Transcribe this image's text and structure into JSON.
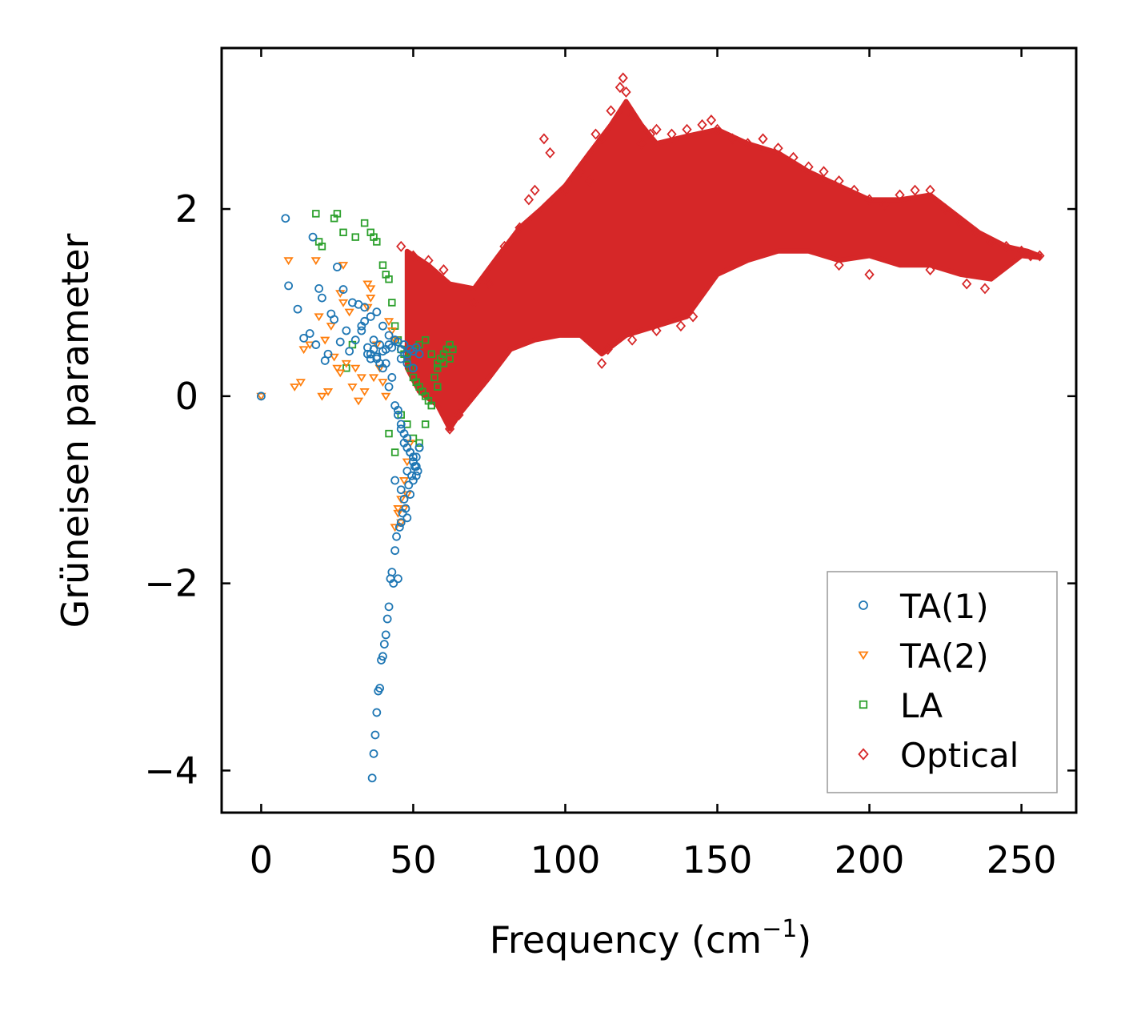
{
  "chart_data": {
    "type": "scatter",
    "title": "",
    "xlabel": "Frequency (cm",
    "xlabel_sup": "−1",
    "xlabel_close": ")",
    "ylabel": "Grüneisen parameter",
    "xlim": [
      -13,
      268
    ],
    "ylim": [
      -4.45,
      3.72
    ],
    "xticks": [
      0,
      50,
      100,
      150,
      200,
      250
    ],
    "yticks": [
      -4,
      -2,
      0,
      2
    ],
    "xtick_labels": [
      "0",
      "50",
      "100",
      "150",
      "200",
      "250"
    ],
    "ytick_labels": [
      "−4",
      "−2",
      "0",
      "2"
    ],
    "legend_position": "lower-right",
    "series": [
      {
        "name": "TA(1)",
        "marker": "circle",
        "color": "#1f77b4",
        "x": [
          0,
          8,
          9,
          12,
          14,
          16,
          17,
          18,
          19,
          20,
          21,
          22,
          23,
          24,
          25,
          26,
          27,
          28,
          29,
          30,
          31,
          32,
          33,
          34,
          35,
          36,
          37,
          38,
          39,
          40,
          41,
          42,
          43,
          44,
          45,
          46,
          47,
          48,
          49,
          50,
          51,
          36.5,
          37,
          37.5,
          38,
          38.5,
          39,
          39.5,
          40,
          40.5,
          41,
          41.5,
          42,
          42.5,
          43,
          43.5,
          44,
          44.5,
          45,
          45.5,
          46,
          46.5,
          47,
          47.5,
          48,
          48.5,
          49,
          49.5,
          50,
          50.5,
          51,
          51.5,
          35,
          36,
          37,
          38,
          39,
          40,
          41,
          42,
          43,
          44,
          45,
          46,
          47,
          48,
          49,
          50,
          51,
          52,
          33,
          34,
          36,
          38,
          40,
          42,
          44,
          46,
          48,
          50,
          45,
          46,
          47,
          48,
          49,
          50,
          51,
          52,
          44,
          46,
          48,
          50,
          52
        ],
        "y": [
          0,
          1.9,
          1.18,
          0.93,
          0.62,
          0.67,
          1.7,
          0.55,
          1.15,
          1.05,
          0.38,
          0.45,
          0.88,
          0.82,
          1.38,
          0.58,
          1.14,
          0.7,
          0.48,
          1.0,
          0.6,
          0.98,
          0.75,
          0.95,
          0.52,
          0.45,
          0.6,
          0.4,
          0.55,
          0.3,
          0.35,
          0.1,
          0.2,
          -0.1,
          -0.15,
          -0.3,
          -0.4,
          -0.55,
          -0.6,
          -0.7,
          -0.85,
          -4.08,
          -3.82,
          -3.62,
          -3.38,
          -3.15,
          -3.12,
          -2.82,
          -2.78,
          -2.65,
          -2.55,
          -2.38,
          -2.25,
          -1.95,
          -1.88,
          -2.0,
          -1.65,
          -1.5,
          -1.95,
          -1.4,
          -1.35,
          -1.25,
          -1.1,
          -1.2,
          -1.3,
          -0.95,
          -1.05,
          -0.85,
          -0.9,
          -0.75,
          -0.65,
          -0.8,
          0.45,
          0.4,
          0.5,
          0.42,
          0.35,
          0.48,
          0.5,
          0.55,
          0.52,
          0.6,
          0.58,
          0.5,
          0.55,
          0.45,
          0.5,
          0.48,
          0.52,
          0.45,
          0.7,
          0.8,
          0.85,
          0.9,
          0.75,
          0.65,
          0.6,
          0.4,
          0.35,
          0.3,
          -0.2,
          -0.35,
          -0.5,
          -0.45,
          -0.6,
          -0.7,
          -0.75,
          -0.55,
          -0.9,
          -1.0,
          -0.8,
          -0.65,
          -0.55
        ]
      },
      {
        "name": "TA(2)",
        "marker": "triangle-down",
        "color": "#ff7f0e",
        "x": [
          0,
          9,
          11,
          13,
          14,
          16,
          18,
          19,
          20,
          21,
          22,
          23,
          24,
          25,
          26,
          27,
          28,
          29,
          30,
          31,
          32,
          33,
          34,
          35,
          36,
          37,
          38,
          39,
          40,
          41,
          42,
          43,
          44,
          45,
          46,
          47,
          48,
          26,
          27,
          35,
          36,
          44,
          45,
          46,
          47,
          48,
          49
        ],
        "y": [
          0,
          1.45,
          0.1,
          0.15,
          0.5,
          0.55,
          1.45,
          0.85,
          0.0,
          0.6,
          0.05,
          0.75,
          0.42,
          0.3,
          0.25,
          1.4,
          0.35,
          0.9,
          0.1,
          0.3,
          -0.05,
          0.2,
          0.05,
          1.2,
          1.15,
          0.2,
          0.55,
          0.3,
          0.15,
          0.0,
          0.8,
          0.7,
          0.6,
          -1.2,
          -1.35,
          -1.2,
          -1.05,
          1.1,
          1.0,
          0.95,
          1.05,
          -1.4,
          -1.25,
          -1.1,
          -0.9,
          -0.7,
          -0.5
        ]
      },
      {
        "name": "LA",
        "marker": "square",
        "color": "#2ca02c",
        "x": [
          18,
          19,
          20,
          24,
          25,
          27,
          28,
          30,
          31,
          34,
          36,
          37,
          38,
          40,
          41,
          42,
          43,
          44,
          45,
          46,
          47,
          48,
          49,
          50,
          51,
          52,
          53,
          54,
          55,
          56,
          57,
          58,
          59,
          60,
          61,
          62,
          63,
          42,
          44,
          46,
          48,
          50,
          52,
          54,
          56,
          58,
          60,
          62,
          52,
          54,
          56,
          58
        ],
        "y": [
          1.95,
          1.65,
          1.6,
          1.9,
          1.95,
          1.75,
          0.3,
          0.55,
          1.7,
          1.85,
          1.75,
          1.7,
          1.65,
          1.4,
          1.3,
          1.25,
          1.0,
          0.75,
          0.6,
          0.5,
          0.45,
          0.4,
          0.3,
          0.2,
          0.15,
          0.1,
          0.05,
          0.0,
          -0.05,
          -0.1,
          0.2,
          0.3,
          0.4,
          0.45,
          0.5,
          0.55,
          0.5,
          -0.4,
          -0.6,
          -0.2,
          -0.3,
          -0.45,
          -0.5,
          -0.3,
          -0.1,
          0.1,
          0.35,
          0.4,
          0.55,
          0.6,
          0.45,
          0.35
        ]
      },
      {
        "name": "Optical",
        "marker": "diamond",
        "color": "#d62728",
        "description_of_band": "dense band from ~50 to ~256 cm^-1",
        "x": [
          46,
          50,
          55,
          60,
          62,
          65,
          70,
          75,
          80,
          85,
          88,
          90,
          93,
          95,
          100,
          105,
          108,
          110,
          112,
          115,
          118,
          119,
          120,
          122,
          125,
          128,
          130,
          135,
          140,
          145,
          148,
          150,
          155,
          160,
          165,
          170,
          175,
          180,
          185,
          190,
          195,
          200,
          205,
          210,
          215,
          220,
          225,
          230,
          235,
          240,
          245,
          250,
          253,
          256,
          112,
          114,
          122,
          130,
          138,
          142,
          190,
          200,
          220,
          232,
          238
        ],
        "y": [
          1.6,
          1.5,
          1.45,
          1.35,
          -0.35,
          -0.2,
          1.0,
          1.2,
          1.6,
          1.8,
          2.1,
          2.2,
          2.75,
          2.6,
          2.2,
          2.4,
          2.3,
          2.8,
          2.75,
          3.05,
          3.3,
          3.4,
          3.25,
          3.0,
          2.7,
          2.8,
          2.85,
          2.8,
          2.85,
          2.9,
          2.95,
          2.85,
          2.75,
          2.7,
          2.75,
          2.65,
          2.55,
          2.45,
          2.4,
          2.3,
          2.2,
          2.1,
          2.05,
          2.15,
          2.2,
          2.2,
          2.0,
          1.85,
          1.75,
          1.65,
          1.6,
          1.55,
          1.5,
          1.5,
          0.35,
          0.5,
          0.6,
          0.7,
          0.75,
          0.85,
          1.4,
          1.3,
          1.35,
          1.2,
          1.15
        ]
      }
    ]
  }
}
